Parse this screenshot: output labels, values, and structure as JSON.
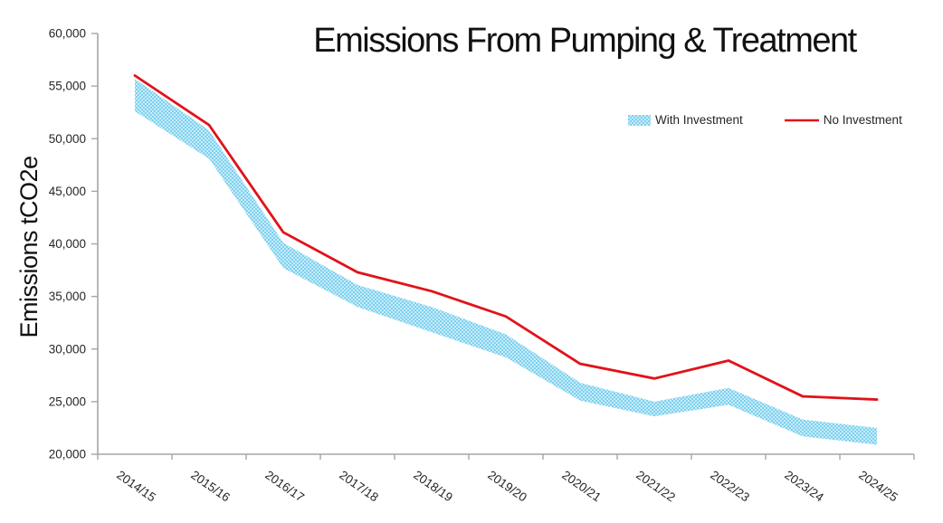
{
  "title": "Emissions From Pumping & Treatment",
  "y_axis_title": "Emissions tCO2e",
  "colors": {
    "band_fill_dark": "#7CD1EE",
    "band_fill_light": "#C8EBF9",
    "no_investment_line": "#E0131A",
    "axis": "#A6A6A6",
    "tick_text": "#262626",
    "title_text": "#111111"
  },
  "legend": {
    "with_investment_label": "With Investment",
    "no_investment_label": "No Investment"
  },
  "chart_data": {
    "type": "line",
    "title": "Emissions From Pumping & Treatment",
    "xlabel": "",
    "ylabel": "Emissions tCO2e",
    "ylim": [
      20000,
      60000
    ],
    "ytick_step": 5000,
    "ytick_labels": [
      "20,000",
      "25,000",
      "30,000",
      "35,000",
      "40,000",
      "45,000",
      "50,000",
      "55,000",
      "60,000"
    ],
    "grid": false,
    "legend_position": "inside-upper-right",
    "categories": [
      "2014/15",
      "2015/16",
      "2016/17",
      "2017/18",
      "2018/19",
      "2019/20",
      "2020/21",
      "2021/22",
      "2022/23",
      "2023/24",
      "2024/25"
    ],
    "series": [
      {
        "name": "With Investment",
        "style": "band",
        "upper": [
          55700,
          50800,
          40100,
          36100,
          34000,
          31400,
          26800,
          25000,
          26300,
          23300,
          22500
        ],
        "lower": [
          52600,
          48100,
          37700,
          34000,
          31600,
          29200,
          25100,
          23600,
          24700,
          21700,
          20900
        ]
      },
      {
        "name": "No Investment",
        "style": "line",
        "values": [
          56000,
          51300,
          41100,
          37300,
          35500,
          33100,
          28600,
          27200,
          28900,
          25500,
          25200
        ]
      }
    ]
  }
}
